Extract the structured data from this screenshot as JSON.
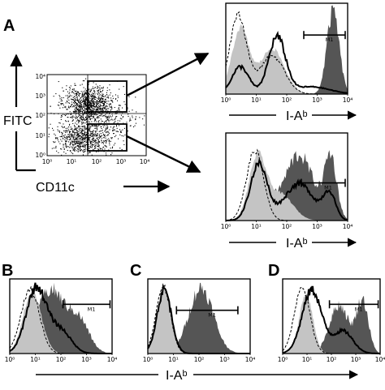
{
  "figure": {
    "panels": [
      "A",
      "B",
      "C",
      "D"
    ],
    "dot_plot": {
      "y_label": "FITC",
      "x_label": "CD11c",
      "y_ticks": [
        "10⁰",
        "10¹",
        "10²",
        "10³",
        "10⁴"
      ],
      "x_ticks": [
        "10⁰",
        "10¹",
        "10²",
        "10³",
        "10⁴"
      ]
    },
    "histogram_axis_label": "I-Aᵇ",
    "shared_axis_label": "I-Aᵇ",
    "hist_ticks": [
      "10⁰",
      "10¹",
      "10²",
      "10³",
      "10⁴"
    ],
    "gate_label": "M1"
  },
  "colors": {
    "light_fill": "#c4c4c4",
    "dark_fill": "#555555",
    "line": "#000000"
  }
}
